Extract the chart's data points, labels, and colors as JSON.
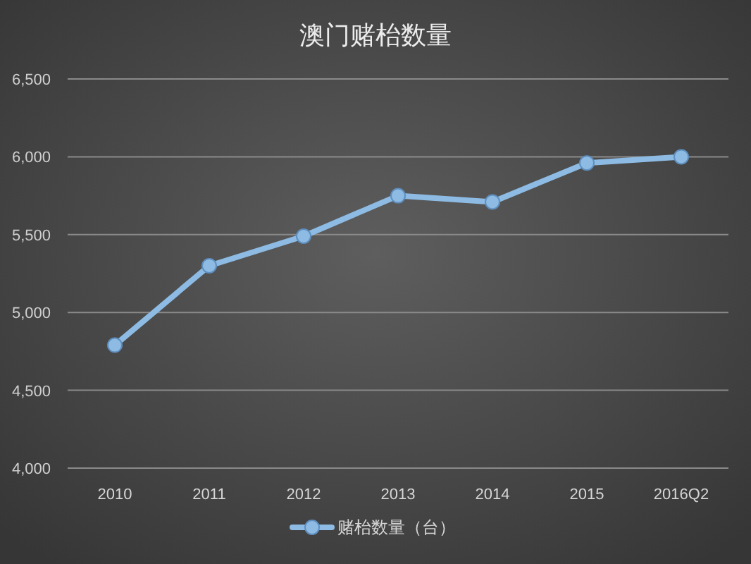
{
  "chart_data": {
    "type": "line",
    "title": "澳门赌枱数量",
    "categories": [
      "2010",
      "2011",
      "2012",
      "2013",
      "2014",
      "2015",
      "2016Q2"
    ],
    "series": [
      {
        "name": "赌枱数量（台）",
        "color": "#8dbbe3",
        "values": [
          4790,
          5300,
          5490,
          5750,
          5710,
          5960,
          6000
        ]
      }
    ],
    "ylim": [
      4000,
      6500
    ],
    "yticks": [
      {
        "value": 4000,
        "label": "4,000"
      },
      {
        "value": 4500,
        "label": "4,500"
      },
      {
        "value": 5000,
        "label": "5,000"
      },
      {
        "value": 5500,
        "label": "5,500"
      },
      {
        "value": 6000,
        "label": "6,000"
      },
      {
        "value": 6500,
        "label": "6,500"
      }
    ],
    "grid": "y",
    "legend": "bottom",
    "marker": "circle",
    "line_style": "solid"
  }
}
